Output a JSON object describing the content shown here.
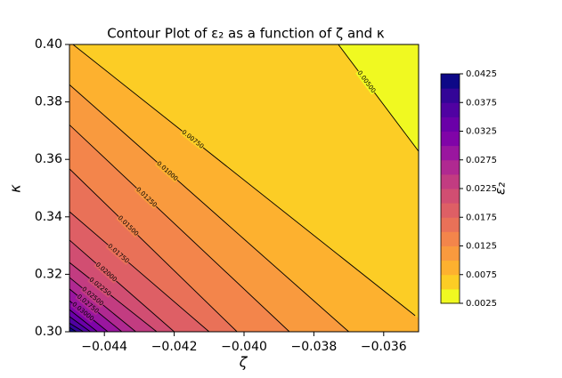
{
  "chart_data": {
    "type": "contour",
    "title": "Contour Plot of ε₂ as a function of ζ and κ",
    "xlabel": "ζ",
    "ylabel": "κ",
    "colorbar_label": "ε₂",
    "xlim": [
      -0.045,
      -0.035
    ],
    "xticks": [
      {
        "value": -0.044,
        "label": "−0.044"
      },
      {
        "value": -0.042,
        "label": "−0.042"
      },
      {
        "value": -0.04,
        "label": "−0.040"
      },
      {
        "value": -0.038,
        "label": "−0.038"
      },
      {
        "value": -0.036,
        "label": "−0.036"
      }
    ],
    "ylim": [
      0.3,
      0.4
    ],
    "yticks": [
      {
        "value": 0.3,
        "label": "0.30"
      },
      {
        "value": 0.32,
        "label": "0.32"
      },
      {
        "value": 0.34,
        "label": "0.34"
      },
      {
        "value": 0.36,
        "label": "0.36"
      },
      {
        "value": 0.38,
        "label": "0.38"
      },
      {
        "value": 0.4,
        "label": "0.40"
      }
    ],
    "levels": [
      0.0025,
      0.005,
      0.0075,
      0.01,
      0.0125,
      0.015,
      0.0175,
      0.02,
      0.0225,
      0.025,
      0.0275,
      0.03,
      0.0325,
      0.035,
      0.0375,
      0.04,
      0.0425
    ],
    "band_colors": [
      "#f0f921",
      "#fccd25",
      "#fdb12f",
      "#f99a3e",
      "#f3854b",
      "#e97158",
      "#de5f65",
      "#d14e72",
      "#c23c81",
      "#b02991",
      "#9a169f",
      "#8004a8",
      "#6a00a8",
      "#5002a2",
      "#330597",
      "#0d0887"
    ],
    "colorbar_lim": [
      0.0025,
      0.0425
    ],
    "colorbar_ticks": [
      0.0025,
      0.0075,
      0.0125,
      0.0175,
      0.0225,
      0.0275,
      0.0325,
      0.0375,
      0.0425
    ],
    "contours": [
      {
        "level": 0.005,
        "label": "0.00500",
        "x": [
          -0.0373,
          -0.035
        ],
        "y": [
          0.4,
          0.3628
        ]
      },
      {
        "level": 0.0075,
        "label": "0.00750",
        "x": [
          -0.0449,
          -0.0351
        ],
        "y": [
          0.4,
          0.3056
        ]
      },
      {
        "level": 0.01,
        "label": "0.01000",
        "x": [
          -0.045,
          -0.037
        ],
        "y": [
          0.386,
          0.3
        ]
      },
      {
        "level": 0.0125,
        "label": "0.01250",
        "x": [
          -0.045,
          -0.0387
        ],
        "y": [
          0.372,
          0.3
        ]
      },
      {
        "level": 0.015,
        "label": "0.01500",
        "x": [
          -0.045,
          -0.0402
        ],
        "y": [
          0.3567,
          0.3
        ]
      },
      {
        "level": 0.0175,
        "label": "0.01750",
        "x": [
          -0.045,
          -0.041
        ],
        "y": [
          0.3418,
          0.3
        ]
      },
      {
        "level": 0.02,
        "label": "0.02000",
        "x": [
          -0.045,
          -0.042
        ],
        "y": [
          0.3319,
          0.3
        ]
      },
      {
        "level": 0.0225,
        "label": "0.02250",
        "x": [
          -0.045,
          -0.0425
        ],
        "y": [
          0.3241,
          0.3
        ]
      },
      {
        "level": 0.025,
        "label": "0.02500",
        "x": [
          -0.045,
          -0.0431
        ],
        "y": [
          0.3189,
          0.3
        ]
      },
      {
        "level": 0.0275,
        "label": "0.02750",
        "x": [
          -0.045,
          -0.0435
        ],
        "y": [
          0.3149,
          0.3
        ]
      },
      {
        "level": 0.03,
        "label": "0.03000",
        "x": [
          -0.045,
          -0.0439
        ],
        "y": [
          0.3108,
          0.3
        ]
      },
      {
        "level": 0.0325,
        "x": [
          -0.045,
          -0.0442
        ],
        "y": [
          0.3077,
          0.3
        ]
      },
      {
        "level": 0.035,
        "x": [
          -0.045,
          -0.0444
        ],
        "y": [
          0.3053,
          0.3
        ]
      },
      {
        "level": 0.0375,
        "x": [
          -0.045,
          -0.0446
        ],
        "y": [
          0.303,
          0.3
        ]
      },
      {
        "level": 0.04,
        "x": [
          -0.045,
          -0.0448
        ],
        "y": [
          0.3015,
          0.3
        ]
      }
    ]
  }
}
